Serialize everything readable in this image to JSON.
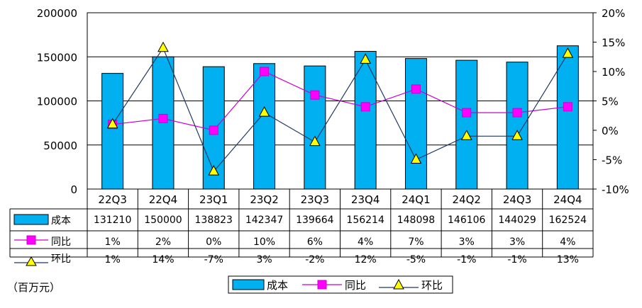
{
  "chart_data": {
    "type": "bar",
    "categories": [
      "22Q3",
      "22Q4",
      "23Q1",
      "23Q2",
      "23Q3",
      "23Q4",
      "24Q1",
      "24Q2",
      "24Q3",
      "24Q4"
    ],
    "series": [
      {
        "name": "成本",
        "type": "bar",
        "axis": "left",
        "values": [
          131210,
          150000,
          138823,
          142347,
          139664,
          156214,
          148098,
          146106,
          144029,
          162524
        ],
        "labels": [
          "131210",
          "150000",
          "138823",
          "142347",
          "139664",
          "156214",
          "148098",
          "146106",
          "144029",
          "162524"
        ],
        "color": "#00B0F0"
      },
      {
        "name": "同比",
        "type": "line",
        "axis": "right",
        "values": [
          1,
          2,
          0,
          10,
          6,
          4,
          7,
          3,
          3,
          4
        ],
        "labels": [
          "1%",
          "2%",
          "0%",
          "10%",
          "6%",
          "4%",
          "7%",
          "3%",
          "3%",
          "4%"
        ],
        "color": "#CC00CC",
        "marker": "square",
        "marker_color": "#FF00FF"
      },
      {
        "name": "环比",
        "type": "line",
        "axis": "right",
        "values": [
          1,
          14,
          -7,
          3,
          -2,
          12,
          -5,
          -1,
          -1,
          13
        ],
        "labels": [
          "1%",
          "14%",
          "-7%",
          "3%",
          "-2%",
          "12%",
          "-5%",
          "-1%",
          "-1%",
          "13%"
        ],
        "color": "#1F3864",
        "marker": "triangle",
        "marker_color": "#FFFF00"
      }
    ],
    "y_left": {
      "min": 0,
      "max": 200000,
      "step": 50000,
      "ticks": [
        "0",
        "50000",
        "100000",
        "150000",
        "200000"
      ]
    },
    "y_right": {
      "min": -10,
      "max": 20,
      "step": 5,
      "ticks": [
        "-10%",
        "-5%",
        "0%",
        "5%",
        "10%",
        "15%",
        "20%"
      ]
    },
    "grid": true,
    "legend": "bottom",
    "unit_label": "（百万元）"
  }
}
